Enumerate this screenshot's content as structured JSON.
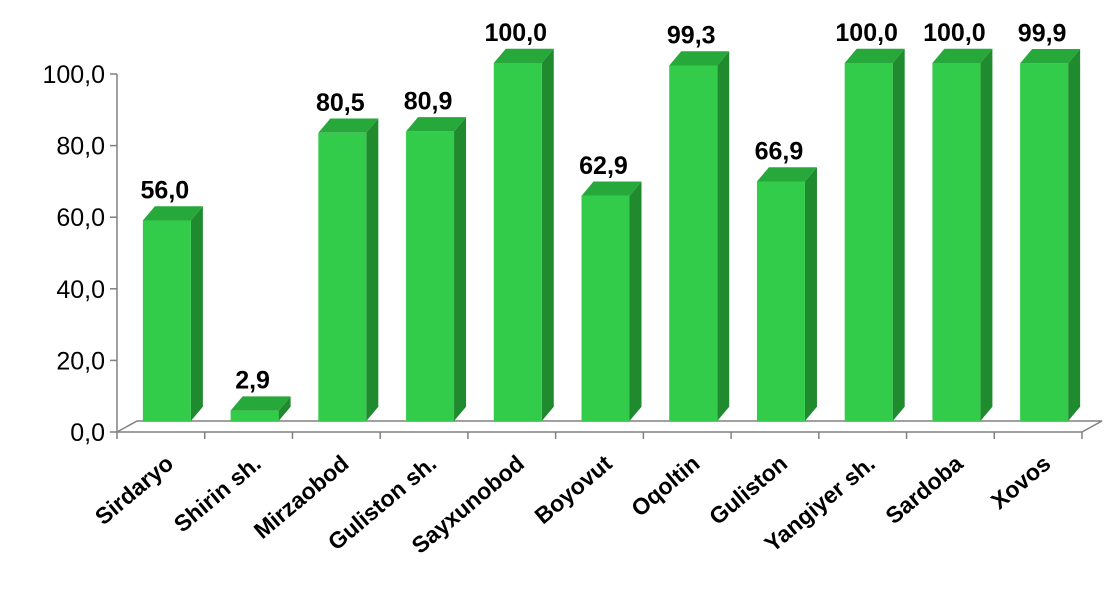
{
  "chart_data": {
    "type": "bar",
    "categories": [
      "Sirdaryo",
      "Shirin sh.",
      "Mirzaobod",
      "Guliston sh.",
      "Sayxunobod",
      "Boyovut",
      "Oqoltin",
      "Guliston",
      "Yangiyer sh.",
      "Sardoba",
      "Xovos"
    ],
    "values": [
      56.0,
      2.9,
      80.5,
      80.9,
      100.0,
      62.9,
      99.3,
      66.9,
      100.0,
      100.0,
      99.9
    ],
    "data_labels": [
      "56,0",
      "2,9",
      "80,5",
      "80,9",
      "100,0",
      "62,9",
      "99,3",
      "66,9",
      "100,0",
      "100,0",
      "99,9"
    ],
    "y_ticks": [
      "0,0",
      "20,0",
      "40,0",
      "60,0",
      "80,0",
      "100,0"
    ],
    "ylim": [
      0,
      100
    ],
    "title": "",
    "xlabel": "",
    "ylabel": "",
    "grid": false,
    "legend": "none",
    "style": "3d",
    "colors": {
      "bar_front": "#33cc4a",
      "bar_side": "#1f8a2e",
      "bar_top": "#27a83b",
      "axis": "#808080"
    }
  }
}
